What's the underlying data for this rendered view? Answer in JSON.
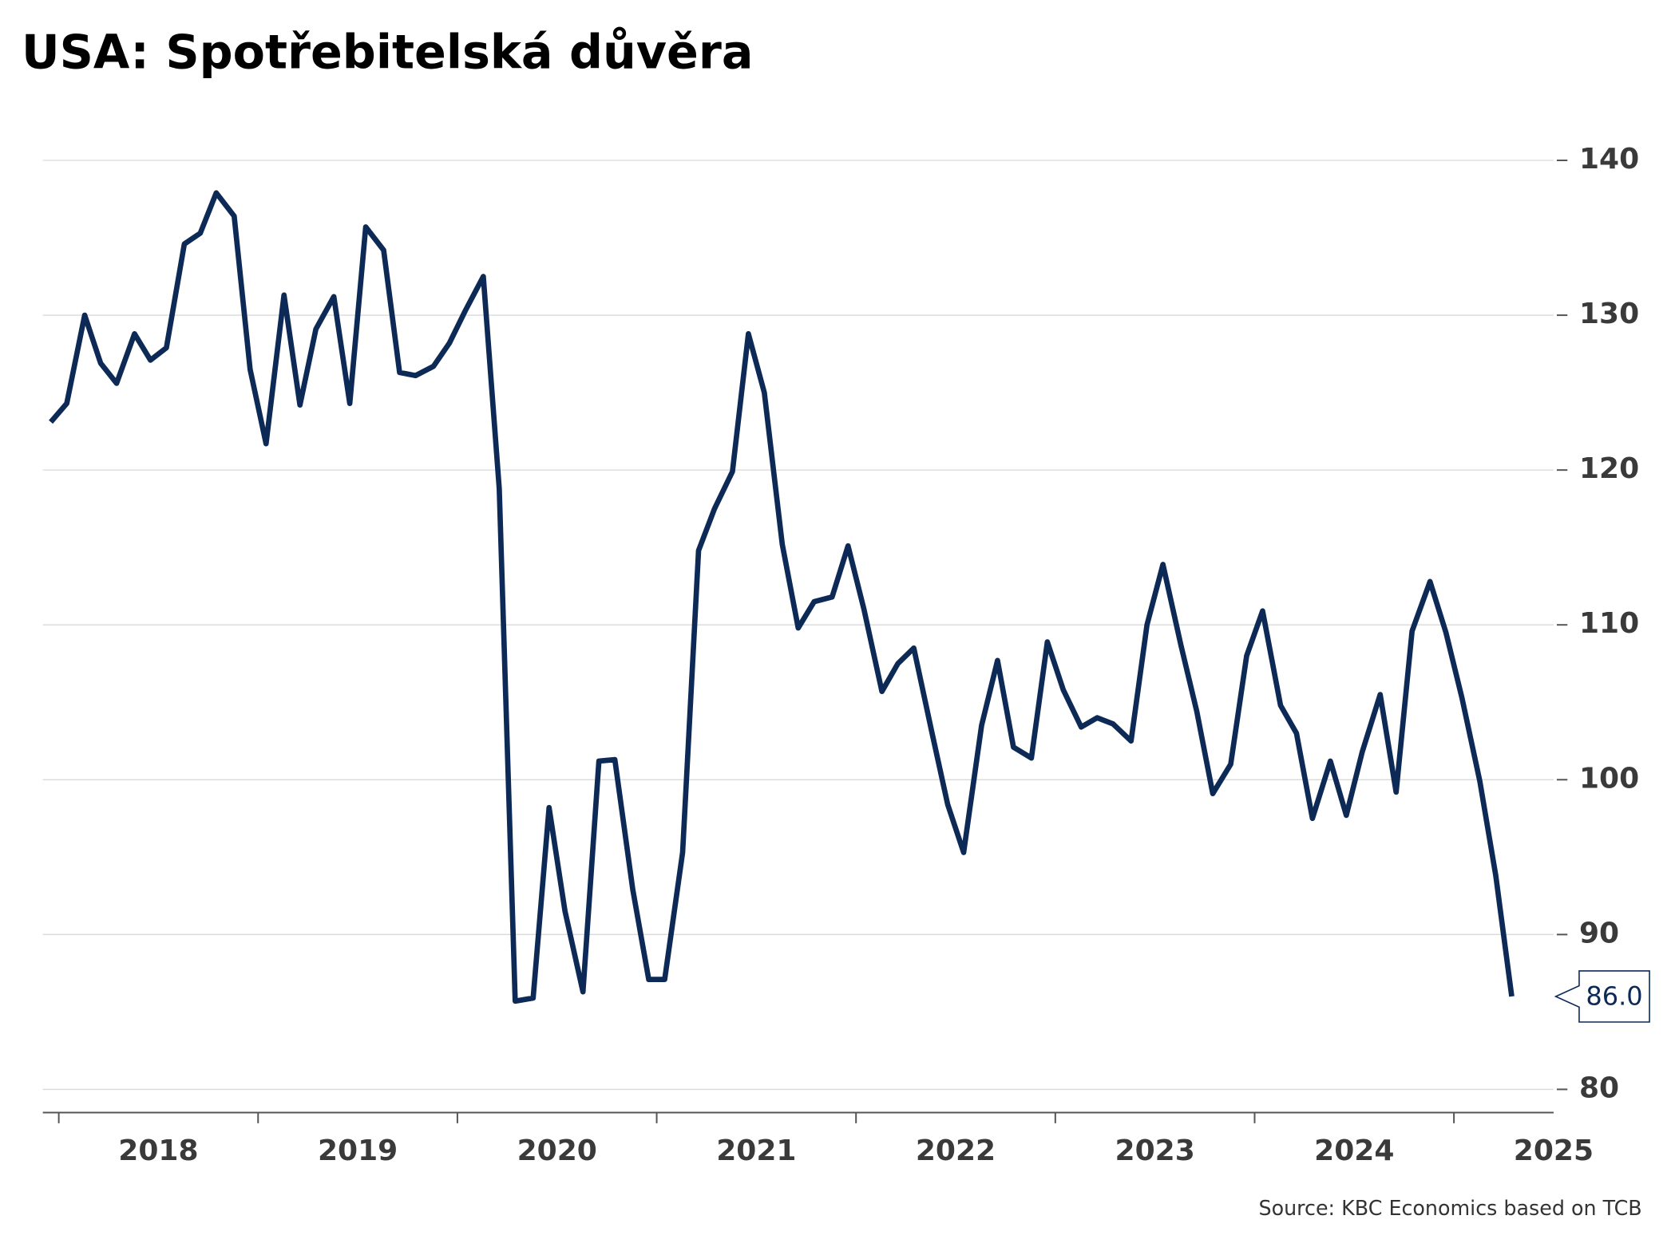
{
  "chart_data": {
    "type": "line",
    "title": "USA: Spotřebitelská důvěra",
    "source": "Source: KBC Economics based on TCB",
    "x": [
      2017.96,
      2018.04,
      2018.13,
      2018.21,
      2018.29,
      2018.38,
      2018.46,
      2018.54,
      2018.63,
      2018.71,
      2018.79,
      2018.88,
      2018.96,
      2019.04,
      2019.13,
      2019.21,
      2019.29,
      2019.38,
      2019.46,
      2019.54,
      2019.63,
      2019.71,
      2019.79,
      2019.88,
      2019.96,
      2020.04,
      2020.13,
      2020.21,
      2020.29,
      2020.38,
      2020.46,
      2020.54,
      2020.63,
      2020.71,
      2020.79,
      2020.88,
      2020.96,
      2021.04,
      2021.13,
      2021.21,
      2021.29,
      2021.38,
      2021.46,
      2021.54,
      2021.63,
      2021.71,
      2021.79,
      2021.88,
      2021.96,
      2022.04,
      2022.13,
      2022.21,
      2022.29,
      2022.38,
      2022.46,
      2022.54,
      2022.63,
      2022.71,
      2022.79,
      2022.88,
      2022.96,
      2023.04,
      2023.13,
      2023.21,
      2023.29,
      2023.38,
      2023.46,
      2023.54,
      2023.63,
      2023.71,
      2023.79,
      2023.88,
      2023.96,
      2024.04,
      2024.13,
      2024.21,
      2024.29,
      2024.38,
      2024.46,
      2024.54,
      2024.63,
      2024.71,
      2024.79,
      2024.88,
      2024.96,
      2025.04,
      2025.13,
      2025.21,
      2025.29
    ],
    "series": [
      {
        "color": "#0d2a57",
        "values": [
          123.1,
          124.3,
          130.0,
          126.9,
          125.6,
          128.8,
          127.1,
          127.9,
          134.6,
          135.3,
          137.9,
          136.4,
          126.5,
          121.7,
          131.3,
          124.2,
          129.1,
          131.2,
          124.3,
          135.7,
          134.2,
          126.3,
          126.1,
          126.7,
          128.2,
          130.3,
          132.5,
          118.8,
          85.7,
          85.9,
          98.2,
          91.5,
          86.3,
          101.2,
          101.3,
          92.9,
          87.1,
          87.1,
          95.3,
          114.8,
          117.5,
          119.9,
          128.8,
          125.0,
          115.2,
          109.8,
          111.5,
          111.8,
          115.1,
          111.0,
          105.7,
          107.5,
          108.5,
          103.1,
          98.4,
          95.3,
          103.5,
          107.7,
          102.1,
          101.4,
          108.9,
          105.8,
          103.4,
          104.0,
          103.6,
          102.5,
          110.0,
          113.9,
          108.7,
          104.4,
          99.1,
          101.0,
          108.0,
          110.9,
          104.8,
          103.0,
          97.5,
          101.2,
          97.7,
          101.8,
          105.5,
          99.2,
          109.6,
          112.8,
          109.5,
          105.3,
          99.9,
          93.8,
          86.0
        ],
        "value_labels": [
          null,
          null,
          null,
          null,
          null,
          null,
          null,
          null,
          null,
          null,
          null,
          null,
          null,
          null,
          null,
          null,
          null,
          null,
          null,
          null,
          null,
          null,
          null,
          null,
          null,
          null,
          null,
          null,
          null,
          null,
          null,
          null,
          null,
          null,
          null,
          null,
          null,
          null,
          null,
          null,
          null,
          null,
          null,
          null,
          null,
          null,
          null,
          null,
          null,
          null,
          null,
          null,
          null,
          null,
          null,
          null,
          null,
          null,
          null,
          null,
          null,
          null,
          null,
          null,
          null,
          null,
          null,
          null,
          null,
          null,
          null,
          null,
          null,
          null,
          null,
          null,
          null,
          null,
          null,
          null,
          null,
          null,
          null,
          null,
          null,
          null,
          null,
          null,
          "86.0"
        ]
      }
    ],
    "xlim": [
      2017.92,
      2025.5
    ],
    "xticks": [
      2018,
      2019,
      2020,
      2021,
      2022,
      2023,
      2024,
      2025
    ],
    "ylim": [
      78.5,
      143
    ],
    "yticks": [
      80,
      90,
      100,
      110,
      120,
      130,
      140
    ],
    "grid": true
  }
}
